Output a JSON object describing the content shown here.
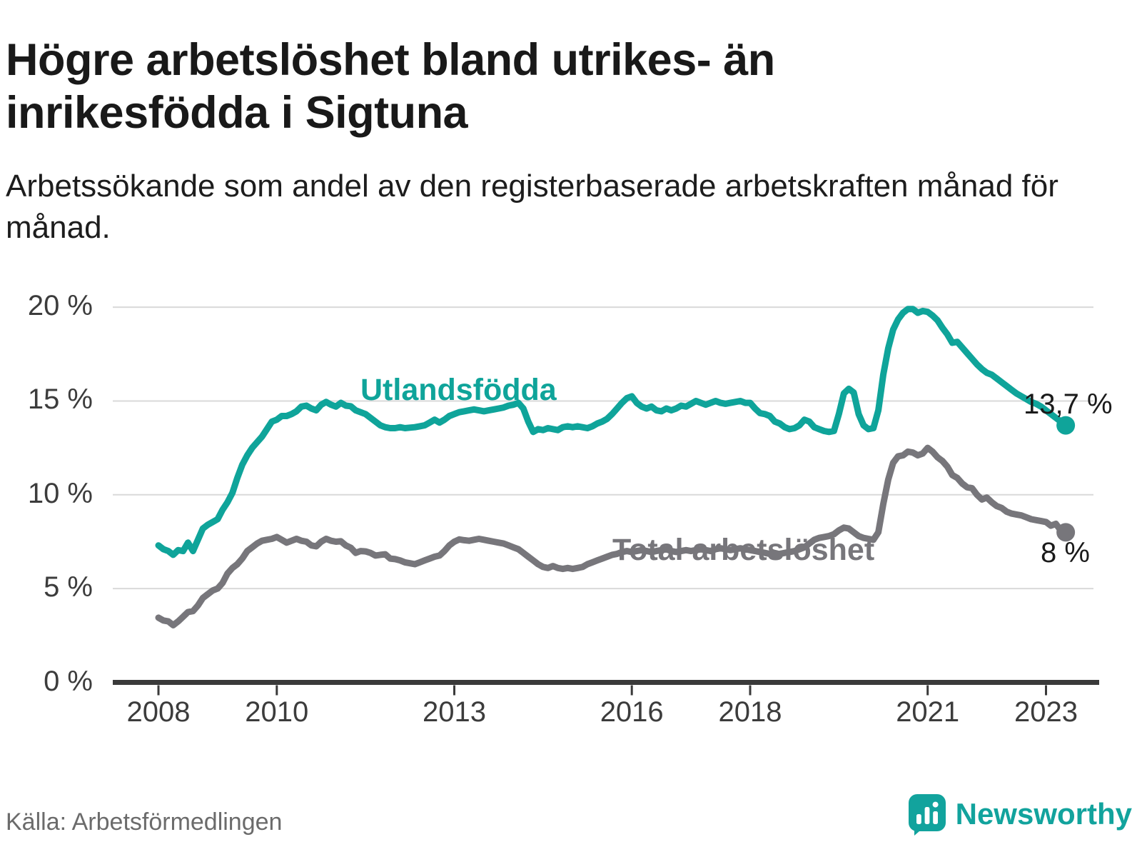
{
  "header": {
    "title": "Högre arbetslöshet bland utrikes- än inrikesfödda i Sigtuna",
    "subtitle": "Arbetssökande som andel av den registerbaserade arbetskraften månad för månad."
  },
  "footer": {
    "source": "Källa: Arbetsförmedlingen",
    "brand_name": "Newsworthy"
  },
  "colors": {
    "foreign_line": "#0fa49a",
    "total_line": "#77767b",
    "grid": "#d9d9d9",
    "axis": "#3a3a3a",
    "tick_text": "#3c3c3c",
    "end_label_text": "#1a1a1a",
    "brand_teal": "#12a39d",
    "source_text": "#6b6b6b"
  },
  "chart_data": {
    "type": "line",
    "title": "Högre arbetslöshet bland utrikes- än inrikesfödda i Sigtuna",
    "subtitle": "Arbetssökande som andel av den registerbaserade arbetskraften månad för månad.",
    "source": "Källa: Arbetsförmedlingen",
    "x_start_year": 2008,
    "x_step": "1 month",
    "x_end": "2023-05",
    "xlim": [
      2007.2,
      2024.1
    ],
    "ylim": [
      0,
      21.5
    ],
    "grid": "horizontal",
    "legend_position": "inline-labels",
    "xticks": [
      {
        "t": 2008,
        "label": "2008"
      },
      {
        "t": 2010,
        "label": "2010"
      },
      {
        "t": 2013,
        "label": "2013"
      },
      {
        "t": 2016,
        "label": "2016"
      },
      {
        "t": 2018,
        "label": "2018"
      },
      {
        "t": 2021,
        "label": "2021"
      },
      {
        "t": 2023,
        "label": "2023"
      }
    ],
    "yticks": [
      {
        "v": 0,
        "label": "0 %"
      },
      {
        "v": 5,
        "label": "5 %"
      },
      {
        "v": 10,
        "label": "10 %"
      },
      {
        "v": 15,
        "label": "15 %"
      },
      {
        "v": 20,
        "label": "20 %"
      }
    ],
    "series": [
      {
        "name": "Utlandsfödda",
        "color": "#0fa49a",
        "end_label": "13,7 %",
        "last_value": 13.7,
        "values": [
          7.3,
          7.1,
          7.0,
          6.8,
          7.05,
          7.0,
          7.45,
          7.0,
          7.6,
          8.2,
          8.4,
          8.55,
          8.7,
          9.2,
          9.6,
          10.1,
          10.9,
          11.6,
          12.1,
          12.5,
          12.8,
          13.1,
          13.5,
          13.9,
          14.0,
          14.2,
          14.2,
          14.3,
          14.45,
          14.7,
          14.75,
          14.6,
          14.5,
          14.8,
          14.95,
          14.8,
          14.7,
          14.9,
          14.75,
          14.72,
          14.5,
          14.4,
          14.3,
          14.1,
          13.9,
          13.7,
          13.6,
          13.55,
          13.55,
          13.6,
          13.55,
          13.58,
          13.6,
          13.65,
          13.7,
          13.85,
          14.0,
          13.85,
          14.0,
          14.2,
          14.3,
          14.4,
          14.45,
          14.5,
          14.55,
          14.5,
          14.45,
          14.5,
          14.55,
          14.6,
          14.65,
          14.75,
          14.8,
          14.9,
          14.6,
          13.9,
          13.35,
          13.5,
          13.45,
          13.55,
          13.5,
          13.45,
          13.6,
          13.65,
          13.6,
          13.65,
          13.6,
          13.55,
          13.65,
          13.8,
          13.9,
          14.05,
          14.3,
          14.6,
          14.9,
          15.15,
          15.25,
          14.9,
          14.7,
          14.6,
          14.7,
          14.5,
          14.45,
          14.6,
          14.5,
          14.6,
          14.75,
          14.7,
          14.85,
          15.0,
          14.9,
          14.8,
          14.9,
          15.0,
          14.9,
          14.85,
          14.9,
          14.95,
          15.0,
          14.9,
          14.9,
          14.6,
          14.35,
          14.3,
          14.2,
          13.9,
          13.8,
          13.6,
          13.5,
          13.55,
          13.7,
          14.0,
          13.9,
          13.6,
          13.5,
          13.4,
          13.35,
          13.4,
          14.3,
          15.4,
          15.65,
          15.45,
          14.3,
          13.7,
          13.5,
          13.55,
          14.5,
          16.4,
          17.8,
          18.8,
          19.35,
          19.7,
          19.9,
          19.9,
          19.7,
          19.8,
          19.75,
          19.55,
          19.3,
          18.9,
          18.55,
          18.1,
          18.15,
          17.85,
          17.55,
          17.25,
          16.95,
          16.7,
          16.5,
          16.4,
          16.2,
          16.0,
          15.8,
          15.6,
          15.4,
          15.25,
          15.1,
          14.95,
          14.85,
          14.7,
          14.5,
          14.3,
          14.1,
          13.9,
          13.7
        ]
      },
      {
        "name": "Total arbetslöshet",
        "color": "#77767b",
        "end_label": "8 %",
        "last_value": 8,
        "values": [
          3.45,
          3.3,
          3.25,
          3.05,
          3.25,
          3.5,
          3.75,
          3.8,
          4.1,
          4.5,
          4.7,
          4.9,
          5.0,
          5.3,
          5.8,
          6.1,
          6.3,
          6.6,
          7.0,
          7.2,
          7.4,
          7.55,
          7.6,
          7.65,
          7.75,
          7.6,
          7.45,
          7.55,
          7.65,
          7.55,
          7.5,
          7.3,
          7.25,
          7.5,
          7.65,
          7.55,
          7.5,
          7.52,
          7.3,
          7.18,
          6.9,
          7.0,
          6.98,
          6.9,
          6.76,
          6.8,
          6.83,
          6.6,
          6.57,
          6.5,
          6.4,
          6.35,
          6.3,
          6.4,
          6.5,
          6.6,
          6.7,
          6.76,
          7.0,
          7.3,
          7.5,
          7.62,
          7.58,
          7.55,
          7.6,
          7.65,
          7.6,
          7.55,
          7.5,
          7.45,
          7.4,
          7.3,
          7.2,
          7.1,
          6.9,
          6.7,
          6.5,
          6.3,
          6.15,
          6.1,
          6.2,
          6.1,
          6.05,
          6.1,
          6.05,
          6.1,
          6.15,
          6.3,
          6.4,
          6.5,
          6.6,
          6.7,
          6.8,
          6.85,
          6.95,
          7.0,
          6.95,
          7.0,
          7.05,
          7.0,
          6.95,
          7.0,
          7.05,
          7.1,
          7.0,
          6.95,
          7.0,
          7.05,
          7.0,
          7.05,
          7.1,
          7.05,
          7.0,
          7.1,
          7.15,
          7.1,
          7.05,
          7.1,
          7.15,
          7.1,
          7.05,
          7.0,
          6.95,
          6.9,
          6.85,
          6.8,
          6.85,
          6.9,
          6.95,
          7.0,
          7.1,
          7.2,
          7.4,
          7.6,
          7.7,
          7.75,
          7.8,
          7.9,
          8.1,
          8.25,
          8.2,
          8.0,
          7.8,
          7.7,
          7.65,
          7.6,
          8.0,
          9.5,
          10.8,
          11.7,
          12.05,
          12.1,
          12.3,
          12.25,
          12.1,
          12.2,
          12.5,
          12.3,
          12.0,
          11.8,
          11.5,
          11.05,
          10.9,
          10.6,
          10.4,
          10.35,
          10.0,
          9.75,
          9.85,
          9.6,
          9.4,
          9.3,
          9.1,
          9.0,
          8.95,
          8.9,
          8.8,
          8.7,
          8.65,
          8.6,
          8.55,
          8.35,
          8.45,
          8.1,
          8.0
        ]
      }
    ]
  }
}
